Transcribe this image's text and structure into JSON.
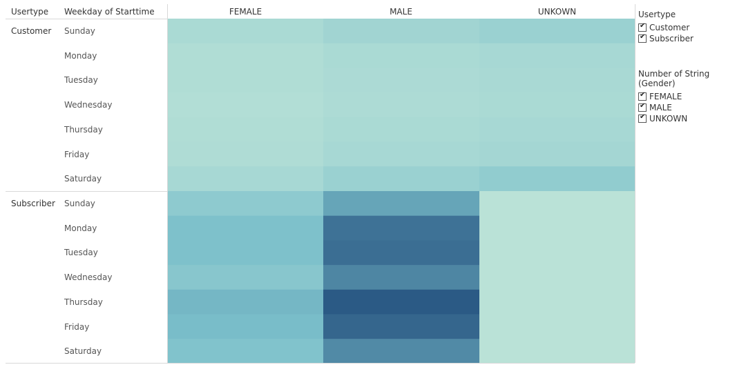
{
  "headers": {
    "usertype": "Usertype",
    "weekday": "Weekday of Starttime"
  },
  "columns": [
    "FEMALE",
    "MALE",
    "UNKOWN"
  ],
  "usertypes": [
    "Customer",
    "Subscriber"
  ],
  "days": [
    "Sunday",
    "Monday",
    "Tuesday",
    "Wednesday",
    "Thursday",
    "Friday",
    "Saturday"
  ],
  "legend": {
    "usertype_title": "Usertype",
    "usertype_items": [
      "Customer",
      "Subscriber"
    ],
    "gender_title": "Number of String (Gender)",
    "gender_items": [
      "FEMALE",
      "MALE",
      "UNKOWN"
    ]
  },
  "colors": {
    "low": "#bde4d8",
    "mid": "#7cc0cb",
    "high": "#2b5a85"
  },
  "chart_data": {
    "type": "heatmap",
    "xlabel": "",
    "ylabel": "",
    "x_categories": [
      "FEMALE",
      "MALE",
      "UNKOWN"
    ],
    "y_groups": [
      {
        "usertype": "Customer",
        "rows": [
          {
            "day": "Sunday",
            "values": [
              12,
              18,
              22
            ]
          },
          {
            "day": "Monday",
            "values": [
              8,
              12,
              14
            ]
          },
          {
            "day": "Tuesday",
            "values": [
              8,
              11,
              13
            ]
          },
          {
            "day": "Wednesday",
            "values": [
              7,
              10,
              12
            ]
          },
          {
            "day": "Thursday",
            "values": [
              8,
              12,
              14
            ]
          },
          {
            "day": "Friday",
            "values": [
              9,
              14,
              16
            ]
          },
          {
            "day": "Saturday",
            "values": [
              14,
              22,
              28
            ]
          }
        ]
      },
      {
        "usertype": "Subscriber",
        "rows": [
          {
            "day": "Sunday",
            "values": [
              30,
              55,
              2
            ]
          },
          {
            "day": "Monday",
            "values": [
              40,
              80,
              2
            ]
          },
          {
            "day": "Tuesday",
            "values": [
              40,
              82,
              2
            ]
          },
          {
            "day": "Wednesday",
            "values": [
              34,
              70,
              2
            ]
          },
          {
            "day": "Thursday",
            "values": [
              46,
              92,
              2
            ]
          },
          {
            "day": "Friday",
            "values": [
              43,
              86,
              2
            ]
          },
          {
            "day": "Saturday",
            "values": [
              38,
              68,
              2
            ]
          }
        ]
      }
    ]
  }
}
